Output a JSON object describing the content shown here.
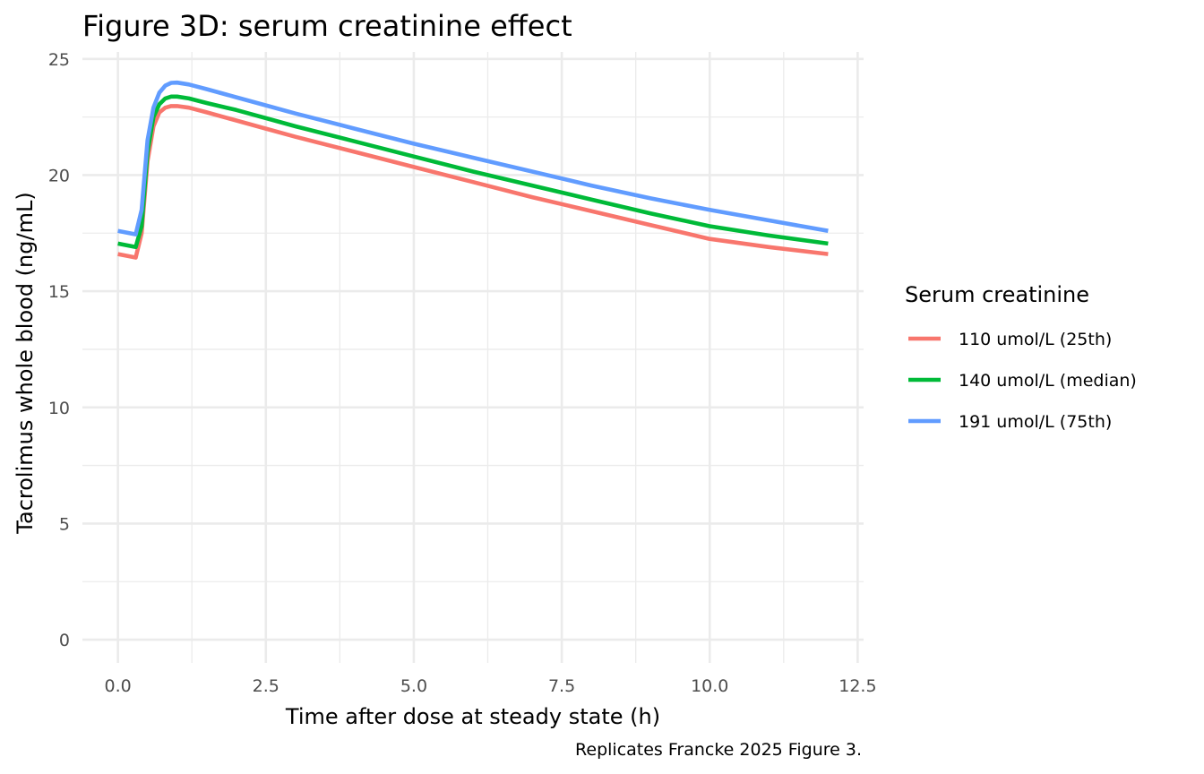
{
  "chart_data": {
    "type": "line",
    "title": "Figure 3D: serum creatinine effect",
    "xlabel": "Time after dose at steady state (h)",
    "ylabel": "Tacrolimus whole blood (ng/mL)",
    "caption": "Replicates Francke 2025 Figure 3.",
    "xlim": [
      -0.6,
      12.6
    ],
    "ylim": [
      -1.0,
      25.3
    ],
    "x_ticks": [
      0.0,
      2.5,
      5.0,
      7.5,
      10.0,
      12.5
    ],
    "x_tick_labels": [
      "0.0",
      "2.5",
      "5.0",
      "7.5",
      "10.0",
      "12.5"
    ],
    "y_ticks": [
      0,
      5,
      10,
      15,
      20,
      25
    ],
    "y_tick_labels": [
      "0",
      "5",
      "10",
      "15",
      "20",
      "25"
    ],
    "grid": true,
    "legend": {
      "title": "Serum creatinine",
      "position": "right"
    },
    "series": [
      {
        "name": "110 umol/L (25th)",
        "color": "#F8766D",
        "x": [
          0,
          0.3,
          0.4,
          0.5,
          0.6,
          0.7,
          0.8,
          0.9,
          1.0,
          1.2,
          1.5,
          2.0,
          2.5,
          3.0,
          4.0,
          5.0,
          6.0,
          7.0,
          8.0,
          9.0,
          10.0,
          11.0,
          12.0
        ],
        "values": [
          16.6,
          16.45,
          17.5,
          20.6,
          22.1,
          22.7,
          22.9,
          22.97,
          22.97,
          22.9,
          22.7,
          22.35,
          22.0,
          21.65,
          21.0,
          20.35,
          19.7,
          19.05,
          18.45,
          17.85,
          17.25,
          16.9,
          16.6
        ]
      },
      {
        "name": "140 umol/L (median)",
        "color": "#00BA38",
        "x": [
          0,
          0.3,
          0.4,
          0.5,
          0.6,
          0.7,
          0.8,
          0.9,
          1.0,
          1.2,
          1.5,
          2.0,
          2.5,
          3.0,
          4.0,
          5.0,
          6.0,
          7.0,
          8.0,
          9.0,
          10.0,
          11.0,
          12.0
        ],
        "values": [
          17.05,
          16.9,
          17.8,
          21.0,
          22.5,
          23.05,
          23.3,
          23.38,
          23.38,
          23.3,
          23.1,
          22.8,
          22.45,
          22.1,
          21.45,
          20.8,
          20.15,
          19.55,
          18.95,
          18.35,
          17.8,
          17.4,
          17.05
        ]
      },
      {
        "name": "191 umol/L (75th)",
        "color": "#619CFF",
        "x": [
          0,
          0.3,
          0.4,
          0.5,
          0.6,
          0.7,
          0.8,
          0.9,
          1.0,
          1.2,
          1.5,
          2.0,
          2.5,
          3.0,
          4.0,
          5.0,
          6.0,
          7.0,
          8.0,
          9.0,
          10.0,
          11.0,
          12.0
        ],
        "values": [
          17.6,
          17.45,
          18.5,
          21.5,
          22.9,
          23.55,
          23.85,
          23.97,
          23.98,
          23.9,
          23.7,
          23.35,
          23.0,
          22.65,
          22.0,
          21.35,
          20.75,
          20.15,
          19.55,
          19.0,
          18.5,
          18.05,
          17.6
        ]
      }
    ]
  }
}
